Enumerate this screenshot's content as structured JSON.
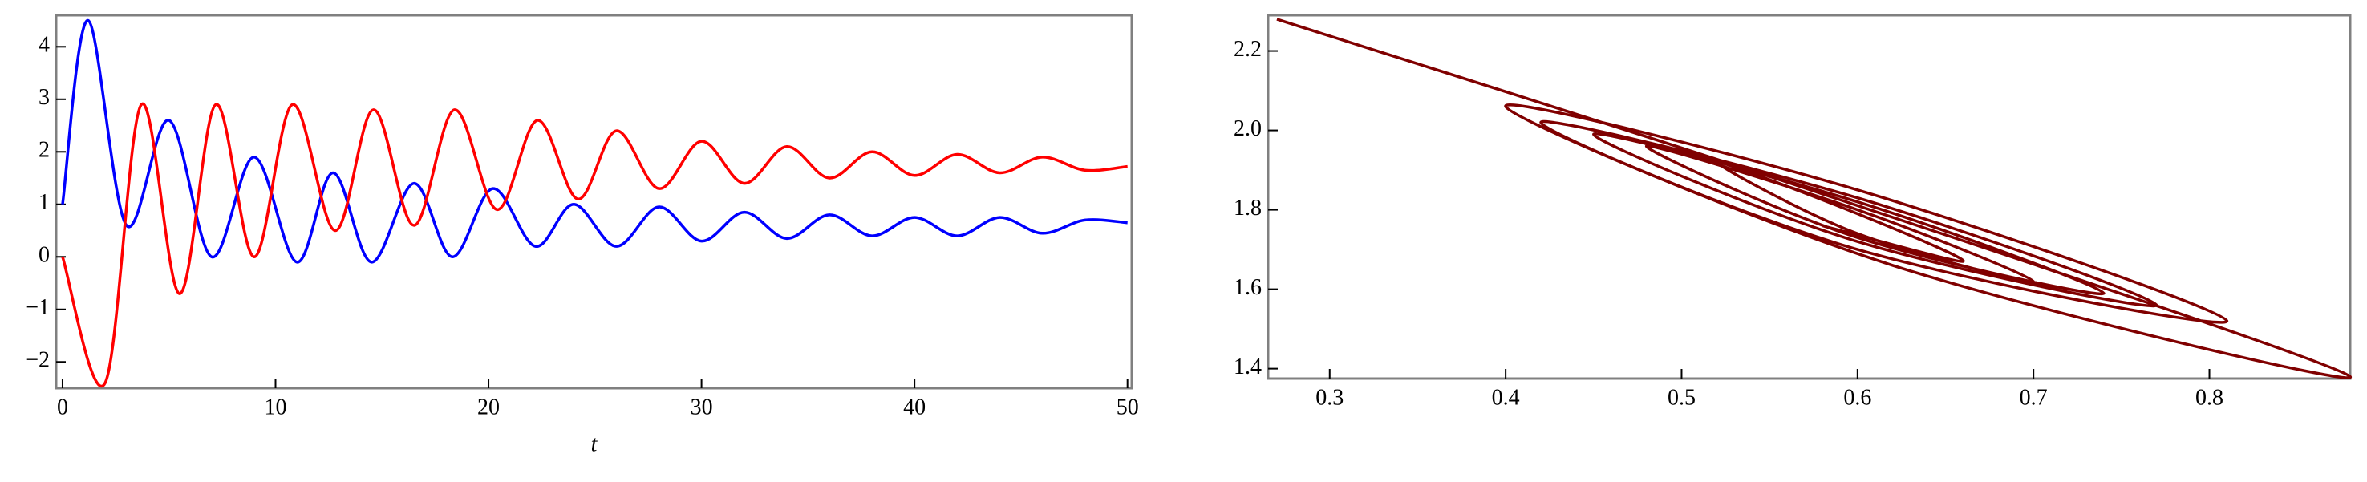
{
  "chart_data": [
    {
      "type": "line",
      "xlabel": "t",
      "xlim": [
        -0.3,
        50.2
      ],
      "ylim": [
        -2.5,
        4.6
      ],
      "xticks": [
        0,
        10,
        20,
        30,
        40,
        50
      ],
      "yticks": [
        {
          "value": -2,
          "label": "−2"
        },
        {
          "value": -1,
          "label": "−1"
        },
        0,
        1,
        2,
        3,
        4
      ],
      "series": [
        {
          "color": "#0000ff",
          "x": [
            0,
            1.2,
            3,
            5,
            7,
            9,
            11,
            12.7,
            14.5,
            16.5,
            18.3,
            20.2,
            22.2,
            24,
            26,
            28,
            30,
            32,
            34,
            36,
            38,
            40,
            42,
            44,
            46,
            48,
            50
          ],
          "values": [
            1,
            4.5,
            0.6,
            2.6,
            0,
            1.9,
            -0.1,
            1.6,
            -0.1,
            1.4,
            0,
            1.3,
            0.2,
            1.0,
            0.2,
            0.95,
            0.3,
            0.85,
            0.35,
            0.8,
            0.4,
            0.75,
            0.4,
            0.75,
            0.45,
            0.7,
            0.65
          ]
        },
        {
          "color": "#ff0000",
          "x": [
            0,
            2,
            3.7,
            5.5,
            7.2,
            9,
            10.8,
            12.8,
            14.6,
            16.5,
            18.4,
            20.4,
            22.3,
            24.2,
            26,
            28,
            30,
            32,
            34,
            36,
            38,
            40,
            42,
            44,
            46,
            48,
            50
          ],
          "values": [
            0,
            -2.4,
            2.9,
            -0.7,
            2.9,
            0,
            2.9,
            0.5,
            2.8,
            0.6,
            2.8,
            0.9,
            2.6,
            1.1,
            2.4,
            1.3,
            2.2,
            1.4,
            2.1,
            1.5,
            2.0,
            1.55,
            1.95,
            1.6,
            1.9,
            1.65,
            1.72
          ]
        }
      ]
    },
    {
      "type": "line",
      "xlim": [
        0.265,
        0.88
      ],
      "ylim": [
        1.375,
        2.29
      ],
      "xticks": [
        0.3,
        0.4,
        0.5,
        0.6,
        0.7,
        0.8
      ],
      "yticks": [
        1.4,
        1.6,
        1.8,
        {
          "value": 2,
          "label": "2.0"
        },
        2.2
      ],
      "series": [
        {
          "color": "#800000",
          "x": [
            0.27,
            0.58,
            0.88,
            0.62,
            0.4,
            0.6,
            0.81,
            0.6,
            0.42,
            0.6,
            0.77,
            0.6,
            0.45,
            0.6,
            0.74,
            0.6,
            0.48,
            0.6,
            0.7,
            0.6,
            0.52,
            0.6,
            0.66,
            0.58
          ],
          "values": [
            2.28,
            1.84,
            1.38,
            1.66,
            2.06,
            1.85,
            1.52,
            1.7,
            2.02,
            1.83,
            1.56,
            1.72,
            1.99,
            1.82,
            1.59,
            1.73,
            1.96,
            1.8,
            1.62,
            1.74,
            1.92,
            1.79,
            1.67,
            1.76
          ]
        }
      ]
    }
  ]
}
